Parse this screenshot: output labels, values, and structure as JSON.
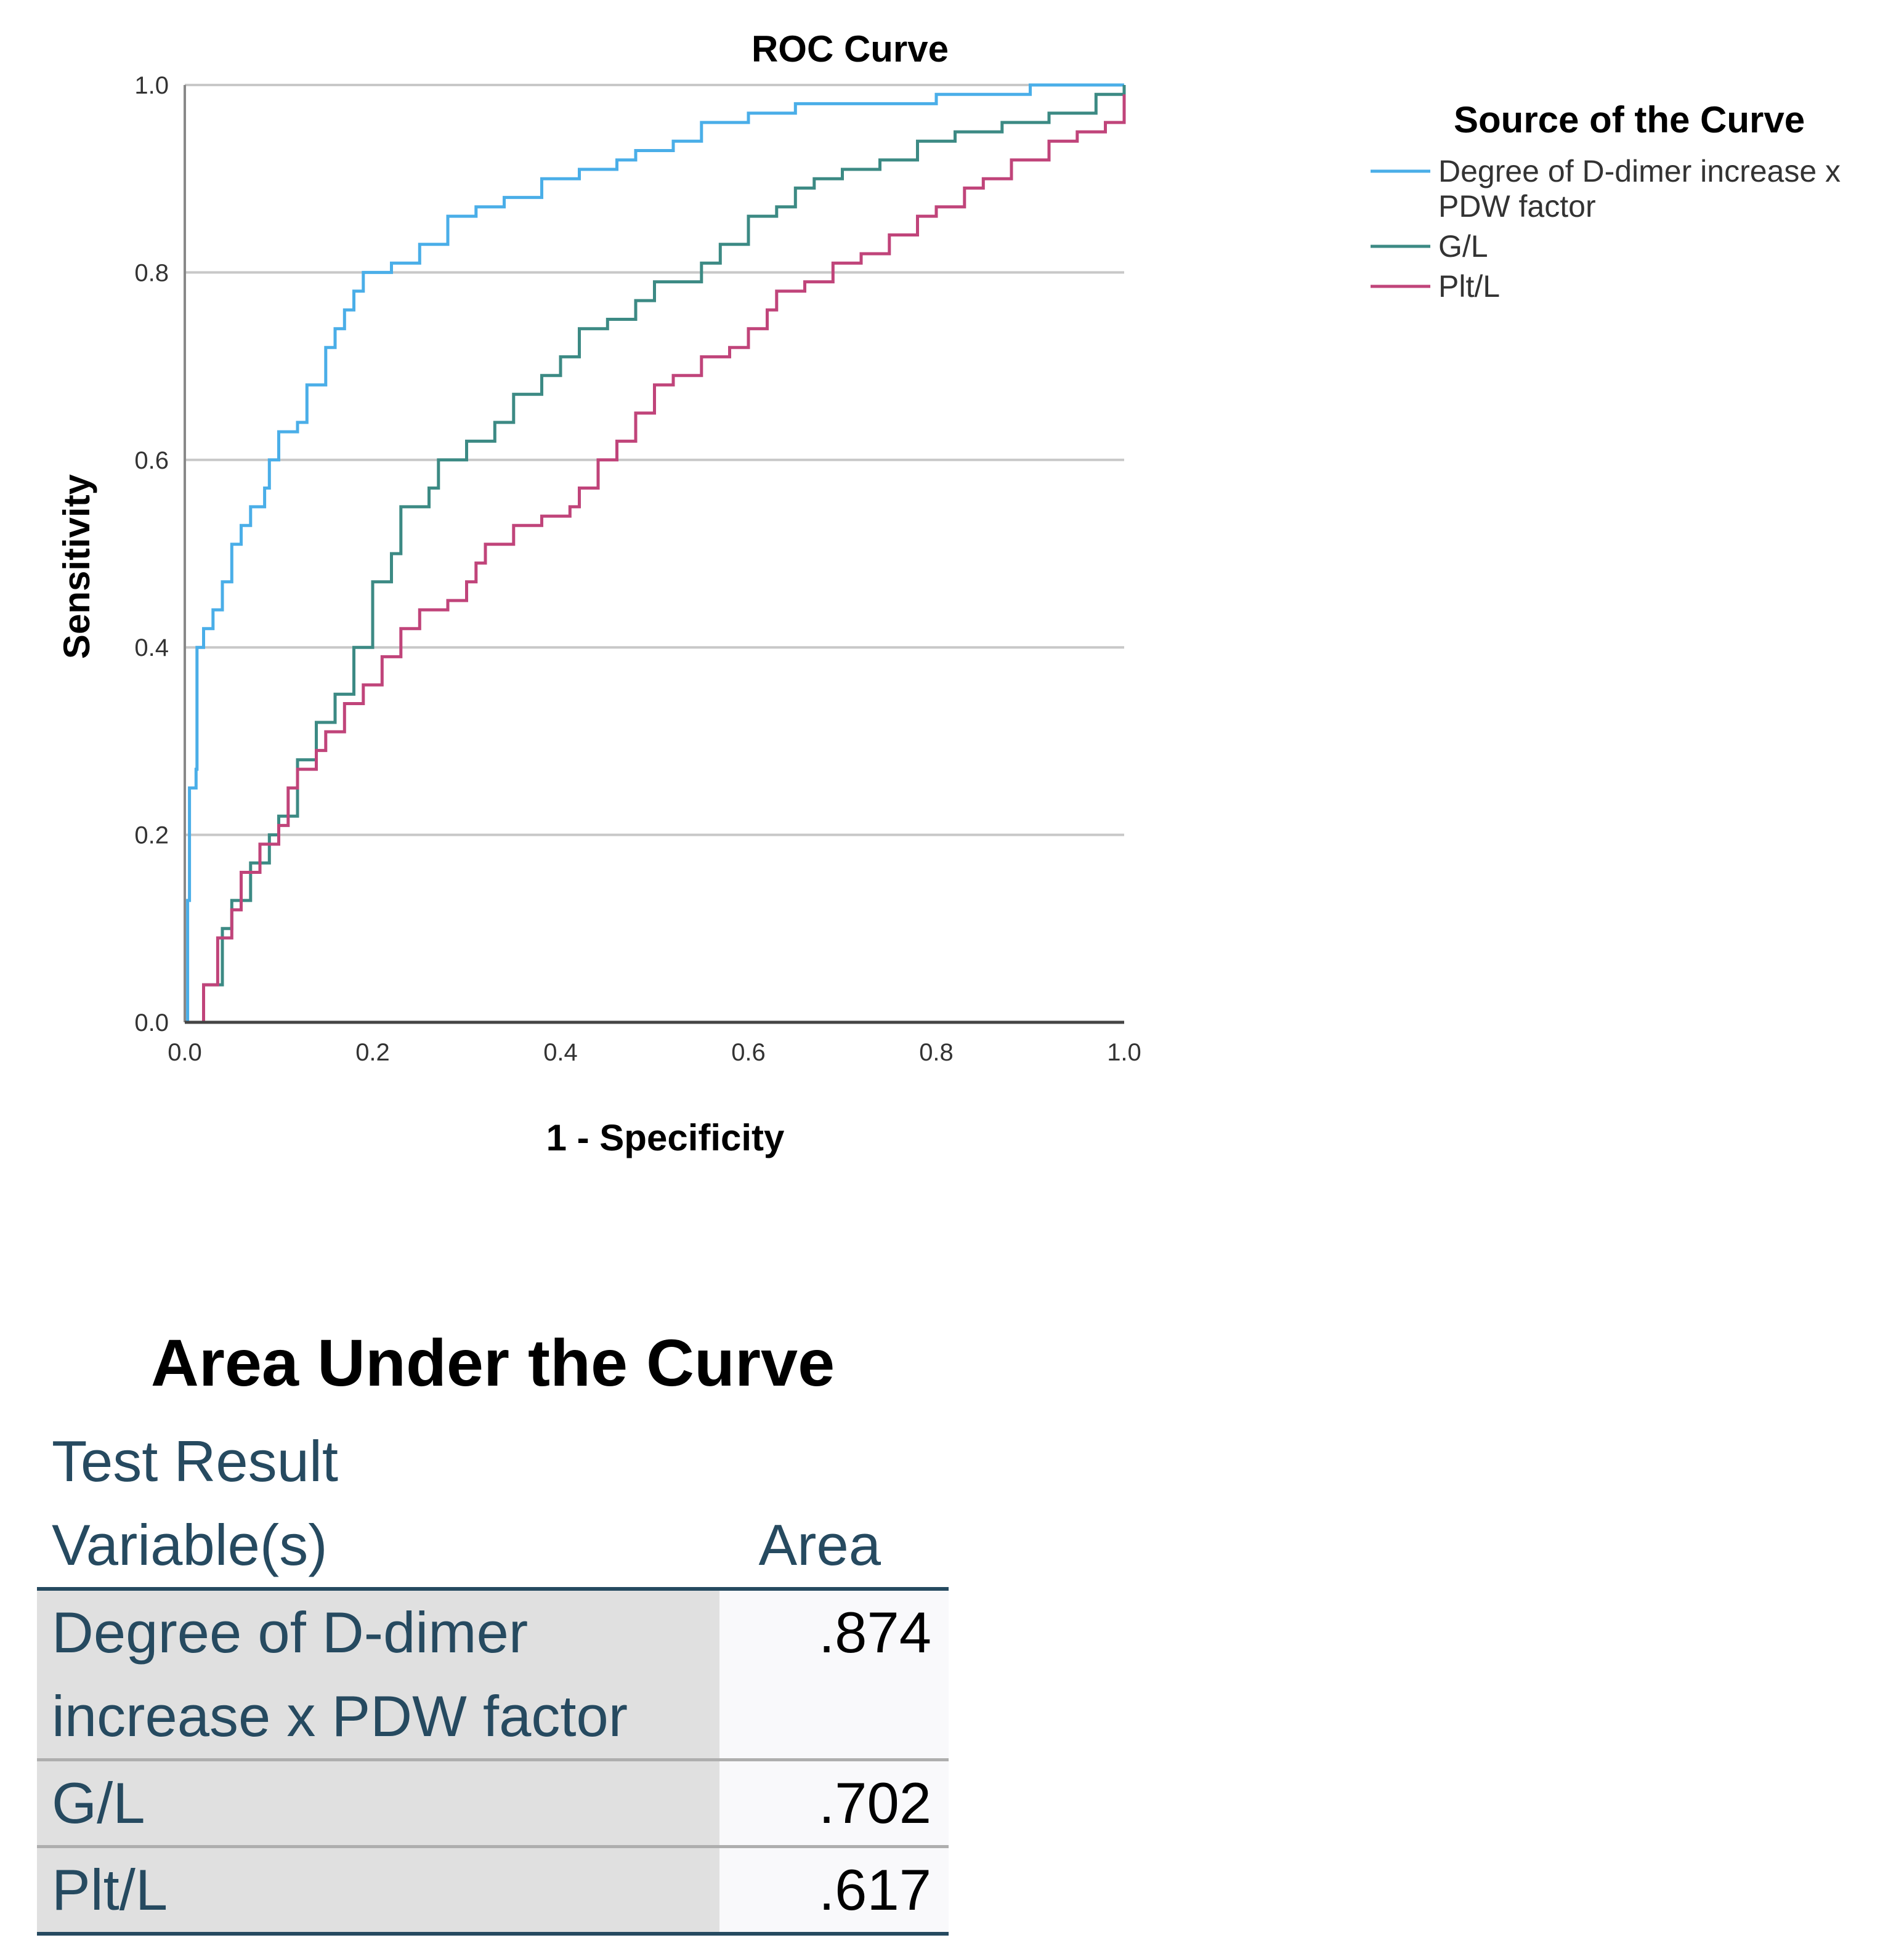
{
  "chart_data": {
    "type": "line",
    "title": "ROC Curve",
    "xlabel": "1 - Specificity",
    "ylabel": "Sensitivity",
    "xlim": [
      0,
      1
    ],
    "ylim": [
      0,
      1
    ],
    "x_ticks": [
      "0.0",
      "0.2",
      "0.4",
      "0.6",
      "0.8",
      "1.0"
    ],
    "y_ticks": [
      "0.0",
      "0.2",
      "0.4",
      "0.6",
      "0.8",
      "1.0"
    ],
    "grid": "horizontal",
    "legend_title": "Source of the Curve",
    "legend_position": "right",
    "series": [
      {
        "name": "Degree of D-dimer increase x PDW factor",
        "legend_lines": [
          "Degree of D-dimer increase x",
          "PDW factor"
        ],
        "color": "#4aaee8",
        "points": [
          [
            0,
            0
          ],
          [
            0.003,
            0.13
          ],
          [
            0.005,
            0.25
          ],
          [
            0.012,
            0.27
          ],
          [
            0.013,
            0.4
          ],
          [
            0.02,
            0.42
          ],
          [
            0.03,
            0.44
          ],
          [
            0.04,
            0.47
          ],
          [
            0.05,
            0.51
          ],
          [
            0.06,
            0.53
          ],
          [
            0.07,
            0.55
          ],
          [
            0.085,
            0.57
          ],
          [
            0.09,
            0.6
          ],
          [
            0.1,
            0.63
          ],
          [
            0.12,
            0.64
          ],
          [
            0.13,
            0.68
          ],
          [
            0.15,
            0.72
          ],
          [
            0.16,
            0.74
          ],
          [
            0.17,
            0.76
          ],
          [
            0.18,
            0.78
          ],
          [
            0.19,
            0.8
          ],
          [
            0.22,
            0.81
          ],
          [
            0.25,
            0.83
          ],
          [
            0.28,
            0.86
          ],
          [
            0.31,
            0.87
          ],
          [
            0.34,
            0.88
          ],
          [
            0.38,
            0.9
          ],
          [
            0.42,
            0.91
          ],
          [
            0.46,
            0.92
          ],
          [
            0.48,
            0.93
          ],
          [
            0.52,
            0.94
          ],
          [
            0.55,
            0.96
          ],
          [
            0.6,
            0.97
          ],
          [
            0.65,
            0.98
          ],
          [
            0.7,
            0.98
          ],
          [
            0.8,
            0.99
          ],
          [
            0.9,
            1.0
          ],
          [
            1.0,
            1.0
          ]
        ]
      },
      {
        "name": "G/L",
        "legend_lines": [
          "G/L"
        ],
        "color": "#3c8a84",
        "points": [
          [
            0,
            0
          ],
          [
            0.02,
            0.04
          ],
          [
            0.04,
            0.1
          ],
          [
            0.05,
            0.13
          ],
          [
            0.07,
            0.17
          ],
          [
            0.09,
            0.2
          ],
          [
            0.1,
            0.22
          ],
          [
            0.12,
            0.28
          ],
          [
            0.14,
            0.32
          ],
          [
            0.16,
            0.35
          ],
          [
            0.18,
            0.4
          ],
          [
            0.2,
            0.47
          ],
          [
            0.22,
            0.5
          ],
          [
            0.23,
            0.55
          ],
          [
            0.26,
            0.57
          ],
          [
            0.27,
            0.6
          ],
          [
            0.3,
            0.62
          ],
          [
            0.33,
            0.64
          ],
          [
            0.35,
            0.67
          ],
          [
            0.38,
            0.69
          ],
          [
            0.4,
            0.71
          ],
          [
            0.42,
            0.74
          ],
          [
            0.45,
            0.75
          ],
          [
            0.48,
            0.77
          ],
          [
            0.5,
            0.79
          ],
          [
            0.55,
            0.81
          ],
          [
            0.57,
            0.83
          ],
          [
            0.6,
            0.86
          ],
          [
            0.63,
            0.87
          ],
          [
            0.65,
            0.89
          ],
          [
            0.67,
            0.9
          ],
          [
            0.7,
            0.91
          ],
          [
            0.74,
            0.92
          ],
          [
            0.78,
            0.94
          ],
          [
            0.82,
            0.95
          ],
          [
            0.87,
            0.96
          ],
          [
            0.92,
            0.97
          ],
          [
            0.97,
            0.99
          ],
          [
            1.0,
            1.0
          ]
        ]
      },
      {
        "name": "Plt/L",
        "legend_lines": [
          "Plt/L"
        ],
        "color": "#c0447a",
        "points": [
          [
            0.005,
            0
          ],
          [
            0.02,
            0.04
          ],
          [
            0.035,
            0.09
          ],
          [
            0.05,
            0.12
          ],
          [
            0.06,
            0.16
          ],
          [
            0.08,
            0.19
          ],
          [
            0.1,
            0.21
          ],
          [
            0.11,
            0.25
          ],
          [
            0.12,
            0.27
          ],
          [
            0.14,
            0.29
          ],
          [
            0.15,
            0.31
          ],
          [
            0.17,
            0.34
          ],
          [
            0.19,
            0.36
          ],
          [
            0.21,
            0.39
          ],
          [
            0.23,
            0.42
          ],
          [
            0.25,
            0.44
          ],
          [
            0.28,
            0.45
          ],
          [
            0.3,
            0.47
          ],
          [
            0.31,
            0.49
          ],
          [
            0.32,
            0.51
          ],
          [
            0.35,
            0.53
          ],
          [
            0.38,
            0.54
          ],
          [
            0.41,
            0.55
          ],
          [
            0.42,
            0.57
          ],
          [
            0.44,
            0.6
          ],
          [
            0.46,
            0.62
          ],
          [
            0.48,
            0.65
          ],
          [
            0.5,
            0.68
          ],
          [
            0.52,
            0.69
          ],
          [
            0.55,
            0.71
          ],
          [
            0.58,
            0.72
          ],
          [
            0.6,
            0.74
          ],
          [
            0.62,
            0.76
          ],
          [
            0.63,
            0.78
          ],
          [
            0.66,
            0.79
          ],
          [
            0.69,
            0.81
          ],
          [
            0.72,
            0.82
          ],
          [
            0.75,
            0.84
          ],
          [
            0.78,
            0.86
          ],
          [
            0.8,
            0.87
          ],
          [
            0.83,
            0.89
          ],
          [
            0.85,
            0.9
          ],
          [
            0.88,
            0.92
          ],
          [
            0.92,
            0.94
          ],
          [
            0.95,
            0.95
          ],
          [
            0.98,
            0.96
          ],
          [
            1.0,
            0.99
          ]
        ]
      }
    ]
  },
  "auc_table": {
    "title": "Area Under the Curve",
    "header_line1": "Test Result",
    "header_line2": "Variable(s)",
    "header_area": "Area",
    "rows": [
      {
        "label_line1": "Degree of D-dimer",
        "label_line2": "increase x PDW factor",
        "area": ".874"
      },
      {
        "label_line1": "G/L",
        "label_line2": "",
        "area": ".702"
      },
      {
        "label_line1": "Plt/L",
        "label_line2": "",
        "area": ".617"
      }
    ]
  }
}
